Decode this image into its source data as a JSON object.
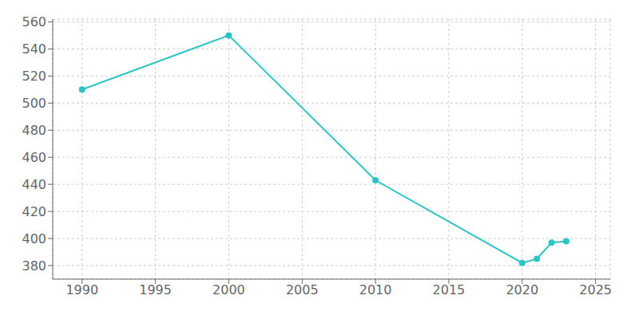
{
  "chart_data": {
    "type": "line",
    "x": [
      1990,
      2000,
      2010,
      2020,
      2021,
      2022,
      2023
    ],
    "values": [
      510,
      550,
      443,
      382,
      385,
      397,
      398
    ],
    "color": "#2EC4C4",
    "marker": "circle",
    "xlim": [
      1988,
      2026
    ],
    "ylim": [
      370,
      562
    ],
    "xticks": [
      1990,
      1995,
      2000,
      2005,
      2010,
      2015,
      2020,
      2025
    ],
    "yticks": [
      380,
      400,
      420,
      440,
      460,
      480,
      500,
      520,
      540,
      560
    ],
    "grid": true
  }
}
